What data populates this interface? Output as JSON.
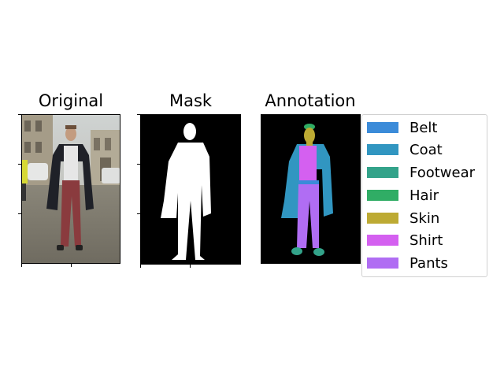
{
  "panels": [
    {
      "title": "Original"
    },
    {
      "title": "Mask"
    },
    {
      "title": "Annotation"
    }
  ],
  "legend": {
    "items": [
      {
        "label": "Belt",
        "color": "#3b8bd9"
      },
      {
        "label": "Coat",
        "color": "#3196c1"
      },
      {
        "label": "Footwear",
        "color": "#33a38a"
      },
      {
        "label": "Hair",
        "color": "#30ad65"
      },
      {
        "label": "Skin",
        "color": "#bdaa33"
      },
      {
        "label": "Shirt",
        "color": "#d460f0"
      },
      {
        "label": "Pants",
        "color": "#b06df3"
      }
    ]
  }
}
